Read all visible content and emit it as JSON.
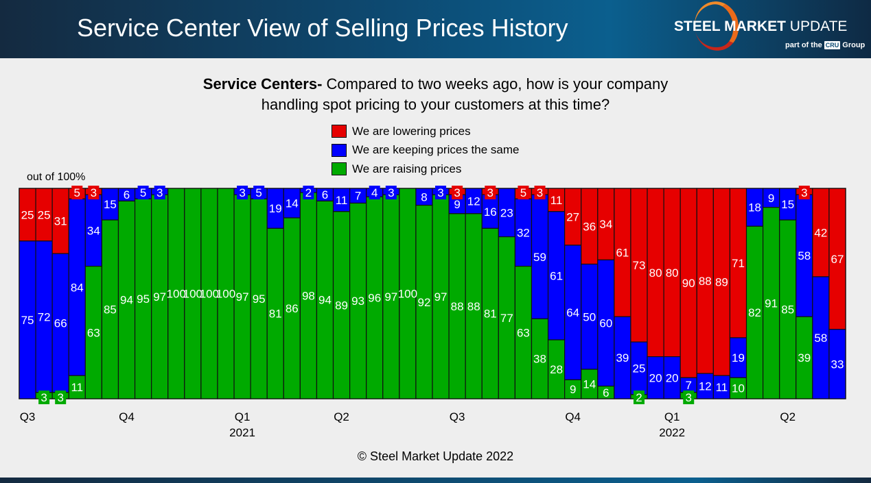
{
  "header": {
    "title": "Service Center View of Selling Prices History",
    "logo_text": "STEEL MARKET UPDATE",
    "logo_sub_prefix": "part of the",
    "logo_sub_brand": "CRU",
    "logo_sub_suffix": "Group"
  },
  "footer": {
    "copyright": "© Steel Market Update 2022"
  },
  "chart_data": {
    "type": "bar",
    "stacked": true,
    "title_bold": "Service Centers-",
    "title_line1": " Compared to two weeks ago, how is your company",
    "title_line2": "handling spot pricing to your customers at this time?",
    "ylabel": "out of 100%",
    "ylim": [
      0,
      100
    ],
    "grid": false,
    "legend_placement": "top-center",
    "colors": {
      "lowering": "#e60000",
      "same": "#0000ff",
      "raising": "#00aa00"
    },
    "x_tick_labels": [
      {
        "bar": 1,
        "label": "Q3",
        "year": ""
      },
      {
        "bar": 7,
        "label": "Q4",
        "year": ""
      },
      {
        "bar": 14,
        "label": "Q1",
        "year": "2021"
      },
      {
        "bar": 20,
        "label": "Q2",
        "year": ""
      },
      {
        "bar": 27,
        "label": "Q3",
        "year": ""
      },
      {
        "bar": 34,
        "label": "Q4",
        "year": ""
      },
      {
        "bar": 40,
        "label": "Q1",
        "year": "2022"
      },
      {
        "bar": 47,
        "label": "Q2",
        "year": ""
      }
    ],
    "series": [
      {
        "key": "lowering",
        "name": "We are lowering prices",
        "values": [
          25,
          25,
          31,
          5,
          3,
          0,
          0,
          0,
          0,
          0,
          0,
          0,
          0,
          0,
          0,
          0,
          0,
          0,
          0,
          0,
          0,
          0,
          0,
          0,
          0,
          0,
          3,
          0,
          3,
          0,
          5,
          3,
          11,
          27,
          36,
          34,
          61,
          73,
          80,
          80,
          90,
          88,
          89,
          71,
          0,
          0,
          0,
          3,
          42,
          67
        ]
      },
      {
        "key": "same",
        "name": "We are keeping prices the same",
        "values": [
          75,
          72,
          66,
          84,
          34,
          15,
          6,
          5,
          3,
          0,
          0,
          0,
          0,
          3,
          5,
          19,
          14,
          2,
          6,
          11,
          7,
          4,
          3,
          0,
          8,
          3,
          9,
          12,
          16,
          23,
          32,
          59,
          61,
          64,
          50,
          60,
          39,
          25,
          20,
          20,
          7,
          12,
          11,
          19,
          18,
          9,
          15,
          58,
          58,
          33
        ]
      },
      {
        "key": "raising",
        "name": "We are raising prices",
        "values": [
          0,
          3,
          3,
          11,
          63,
          85,
          94,
          95,
          97,
          100,
          100,
          100,
          100,
          97,
          95,
          81,
          86,
          98,
          94,
          89,
          93,
          96,
          97,
          100,
          92,
          97,
          88,
          88,
          81,
          77,
          63,
          38,
          28,
          9,
          14,
          6,
          0,
          2,
          0,
          0,
          3,
          0,
          0,
          10,
          82,
          91,
          85,
          39,
          0,
          0
        ]
      }
    ]
  }
}
